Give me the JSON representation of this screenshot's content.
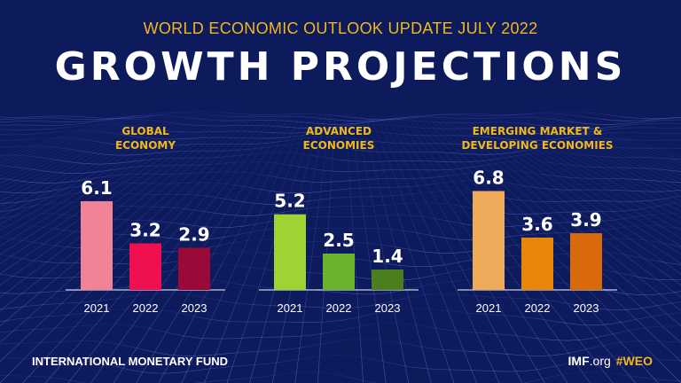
{
  "header": {
    "subtitle": "WORLD ECONOMIC OUTLOOK UPDATE JULY 2022",
    "title": "GROWTH PROJECTIONS"
  },
  "footer": {
    "org": "INTERNATIONAL MONETARY FUND",
    "site_bold": "IMF",
    "site_rest": ".org",
    "hashtag": "#WEO"
  },
  "chart_data": [
    {
      "type": "bar",
      "title": [
        "GLOBAL",
        "ECONOMY"
      ],
      "categories": [
        "2021",
        "2022",
        "2023"
      ],
      "values": [
        6.1,
        3.2,
        2.9
      ],
      "value_labels": [
        "6.1",
        "3.2",
        "2.9"
      ],
      "colors": [
        "#f28295",
        "#f0104f",
        "#9a0a38"
      ],
      "ylim": [
        0,
        8
      ]
    },
    {
      "type": "bar",
      "title": [
        "ADVANCED",
        "ECONOMIES"
      ],
      "categories": [
        "2021",
        "2022",
        "2023"
      ],
      "values": [
        5.2,
        2.5,
        1.4
      ],
      "value_labels": [
        "5.2",
        "2.5",
        "1.4"
      ],
      "colors": [
        "#9fd233",
        "#6ab42c",
        "#4c7e1e"
      ],
      "ylim": [
        0,
        8
      ]
    },
    {
      "type": "bar",
      "title": [
        "EMERGING MARKET &",
        "DEVELOPING ECONOMIES"
      ],
      "categories": [
        "2021",
        "2022",
        "2023"
      ],
      "values": [
        6.8,
        3.6,
        3.9
      ],
      "value_labels": [
        "6.8",
        "3.6",
        "3.9"
      ],
      "colors": [
        "#efaa5a",
        "#e8860a",
        "#d96a0c"
      ],
      "ylim": [
        0,
        8
      ]
    }
  ],
  "style": {
    "background": "#0d1a5c",
    "accent": "#f0b81a",
    "text": "#ffffff",
    "axis": "#c8cde8"
  }
}
